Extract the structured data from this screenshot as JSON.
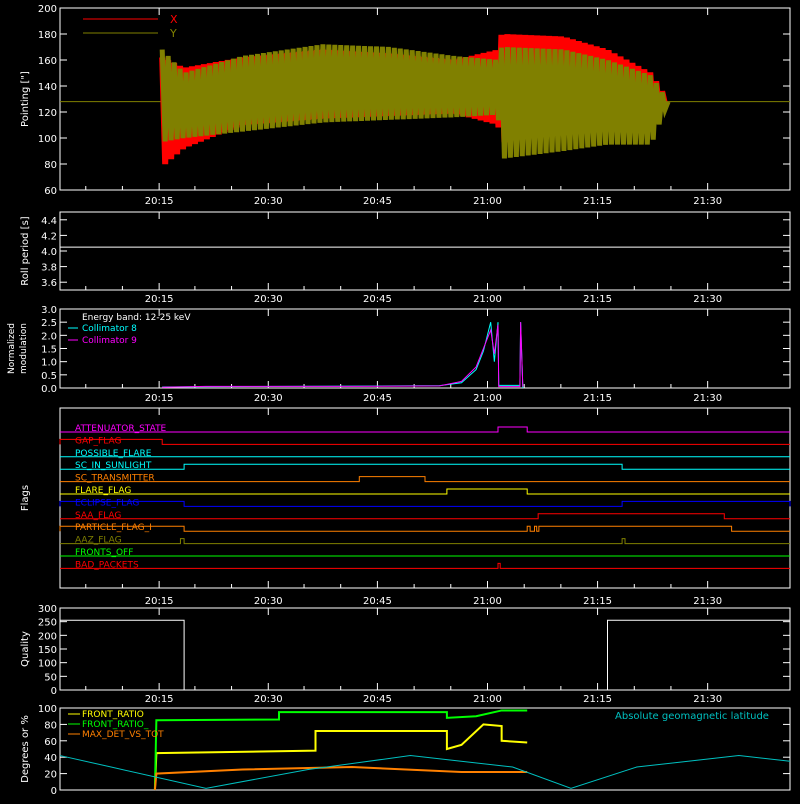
{
  "chart_data": [
    {
      "type": "line",
      "ylabel": "Pointing [\"]",
      "ylim": [
        60,
        200
      ],
      "yticks": [
        60,
        80,
        100,
        120,
        140,
        160,
        180,
        200
      ],
      "xticks": [
        "20:15",
        "20:30",
        "20:45",
        "21:00",
        "21:15",
        "21:30"
      ],
      "legend_position": "top-left",
      "series": [
        {
          "name": "X",
          "color": "#ff0000",
          "x": [
            14,
            17,
            25,
            36,
            45,
            54,
            60,
            60.5,
            69,
            75,
            81,
            83.3
          ],
          "min": [
            78,
            92,
            110,
            115,
            117,
            119,
            110,
            96,
            112,
            120,
            115,
            128
          ],
          "max": [
            162,
            154,
            162,
            168,
            165,
            160,
            168,
            180,
            178,
            168,
            150,
            128
          ]
        },
        {
          "name": "Y",
          "color": "#808000",
          "x": [
            14,
            17,
            25,
            36,
            45,
            54,
            60,
            60.5,
            69,
            75,
            81,
            83.3
          ],
          "min": [
            97,
            100,
            105,
            112,
            114,
            116,
            118,
            84,
            90,
            95,
            95,
            128
          ],
          "max": [
            168,
            150,
            163,
            172,
            170,
            163,
            160,
            170,
            168,
            160,
            148,
            128
          ]
        }
      ],
      "baseline": 128
    },
    {
      "type": "line",
      "ylabel": "Roll period [s]",
      "ylim": [
        3.5,
        4.5
      ],
      "yticks": [
        3.6,
        3.8,
        4.0,
        4.2,
        4.4
      ],
      "xticks": [
        "20:15",
        "20:30",
        "20:45",
        "21:00",
        "21:15",
        "21:30"
      ],
      "series": [
        {
          "name": "",
          "color": "#ffffff",
          "x": [
            0,
            100
          ],
          "y": [
            4.05,
            4.05
          ]
        }
      ]
    },
    {
      "type": "line",
      "ylabel": "Normalized modulation",
      "ylim": [
        0,
        3.0
      ],
      "yticks": [
        0.0,
        0.5,
        1.0,
        1.5,
        2.0,
        2.5,
        3.0
      ],
      "xticks": [
        "20:15",
        "20:30",
        "20:45",
        "21:00",
        "21:15",
        "21:30"
      ],
      "annotation": "Energy band: 12-25 keV",
      "series": [
        {
          "name": "Collimator 8",
          "color": "#00ffff",
          "x": [
            14,
            20,
            40,
            52,
            55,
            57,
            58,
            59,
            59.5,
            60,
            60.1,
            63,
            63.1,
            63.4
          ],
          "y": [
            0.04,
            0.05,
            0.07,
            0.09,
            0.2,
            0.7,
            1.4,
            2.5,
            1.0,
            2.5,
            0.1,
            0.1,
            2.5,
            0.0
          ]
        },
        {
          "name": "Collimator 9",
          "color": "#ff00ff",
          "x": [
            14,
            20,
            40,
            52,
            55,
            57,
            58,
            59,
            59.5,
            60,
            60.1,
            63,
            63.1,
            63.4
          ],
          "y": [
            0.03,
            0.06,
            0.06,
            0.08,
            0.25,
            0.8,
            1.5,
            2.2,
            1.3,
            2.4,
            0.05,
            0.05,
            2.5,
            0.05
          ]
        }
      ]
    },
    {
      "type": "line",
      "ylabel": "Flags",
      "xticks": [
        "20:15",
        "20:30",
        "20:45",
        "21:00",
        "21:15",
        "21:30"
      ],
      "flags": [
        {
          "name": "ATTENUATOR_STATE",
          "color": "#ff00ff",
          "high": [
            [
              60,
              64
            ]
          ]
        },
        {
          "name": "GAP_FLAG",
          "color": "#ff0000",
          "high": [
            [
              0,
              14
            ]
          ]
        },
        {
          "name": "POSSIBLE_FLARE",
          "color": "#00ffff",
          "high": []
        },
        {
          "name": "SC_IN_SUNLIGHT",
          "color": "#00ffff",
          "high": [
            [
              17,
              77
            ]
          ]
        },
        {
          "name": "SC_TRANSMITTER",
          "color": "#ff8000",
          "high": [
            [
              41,
              50
            ]
          ]
        },
        {
          "name": "FLARE_FLAG",
          "color": "#ffff00",
          "high": [
            [
              53,
              64
            ]
          ]
        },
        {
          "name": "ECLIPSE_FLAG",
          "color": "#0000ff",
          "high": [
            [
              0,
              17
            ],
            [
              77,
              100
            ]
          ]
        },
        {
          "name": "SAA_FLAG",
          "color": "#ff0000",
          "high": [
            [
              65.5,
              91
            ]
          ]
        },
        {
          "name": "PARTICLE_FLAG_I",
          "color": "#ff8000",
          "high": [
            [
              0,
              17
            ],
            [
              64,
              64.4
            ],
            [
              65,
              65.3
            ],
            [
              65.6,
              92
            ]
          ]
        },
        {
          "name": "AAZ_FLAG",
          "color": "#808000",
          "high": [
            [
              16.5,
              17
            ],
            [
              77,
              77.4
            ]
          ]
        },
        {
          "name": "FRONTS_OFF",
          "color": "#00ff00",
          "high": []
        },
        {
          "name": "BAD_PACKETS",
          "color": "#ff0000",
          "high": [
            [
              60,
              60.3
            ]
          ]
        }
      ]
    },
    {
      "type": "line",
      "ylabel": "Quality",
      "ylim": [
        0,
        300
      ],
      "yticks": [
        0,
        50,
        100,
        150,
        200,
        250,
        300
      ],
      "xticks": [
        "20:15",
        "20:30",
        "20:45",
        "21:00",
        "21:15",
        "21:30"
      ],
      "series": [
        {
          "name": "",
          "color": "#ffffff",
          "x": [
            0,
            17,
            17,
            75,
            75,
            100
          ],
          "y": [
            255,
            255,
            0,
            0,
            255,
            255
          ]
        }
      ]
    },
    {
      "type": "line",
      "ylabel": "Degrees or %",
      "ylim": [
        0,
        100
      ],
      "yticks": [
        0,
        20,
        40,
        60,
        80,
        100
      ],
      "annotation": "Absolute geomagnetic latitude",
      "series": [
        {
          "name": "FRONT_RATIO",
          "color": "#ffff00",
          "x": [
            13,
            13.2,
            35,
            35,
            53,
            53,
            55,
            58,
            60.5,
            60.5,
            64
          ],
          "y": [
            0,
            45,
            48,
            72,
            72,
            50,
            55,
            80,
            78,
            60,
            58
          ]
        },
        {
          "name": "FRONT_RATIO_",
          "color": "#00ff00",
          "x": [
            13,
            13.2,
            30,
            30,
            53,
            53,
            57,
            60.5,
            64
          ],
          "y": [
            0,
            85,
            86,
            95,
            95,
            88,
            90,
            97,
            97
          ]
        },
        {
          "name": "MAX_DET_VS_TOT",
          "color": "#ff8000",
          "x": [
            13,
            13.2,
            25,
            40,
            55,
            64
          ],
          "y": [
            0,
            20,
            25,
            28,
            22,
            22
          ]
        },
        {
          "name": "Absolute geomagnetic latitude",
          "color": "#00c0c0",
          "x": [
            0,
            7,
            20,
            34,
            48,
            62,
            70,
            79,
            93,
            100
          ],
          "y": [
            42,
            28,
            2,
            25,
            42,
            28,
            2,
            28,
            42,
            35
          ]
        }
      ]
    }
  ]
}
